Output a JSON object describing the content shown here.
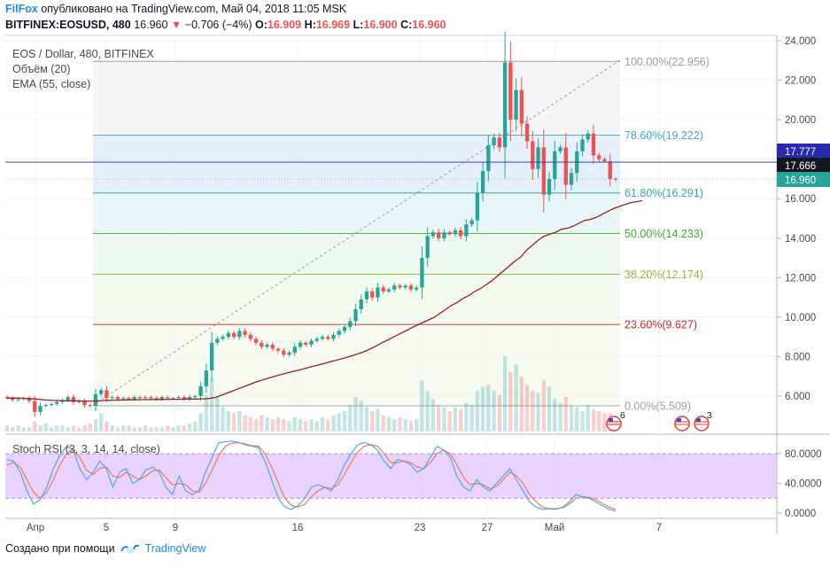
{
  "header": {
    "brand": "FilFox",
    "published": "опубликовано на TradingView.com, Май 04, 2018 11:05 MSK",
    "symbol": "BITFINEX:EOSUSD, 480",
    "last": "16.960",
    "change": "−0.706 (−4%)",
    "o_label": "O:",
    "o_val": "16.909",
    "h_label": "H:",
    "h_val": "16.969",
    "l_label": "L:",
    "l_val": "16.900",
    "c_label": "C:",
    "c_val": "16.960"
  },
  "legend": {
    "title": "EOS / Dollar, 480, BITFINEX",
    "volume": "Объём (20)",
    "ema": "EMA (55, close)",
    "stoch": "Stoch RSI (3, 3, 14, 14, close)"
  },
  "footer": {
    "created": "Создано при помощи",
    "tv": "TradingView"
  },
  "colors": {
    "up": "#26a69a",
    "down": "#ef5350",
    "ema": "#9c1f1f",
    "k_line": "#4aa8f0",
    "d_line": "#f07b4a",
    "stoch_band": "#e1bfff"
  },
  "events": [
    {
      "badge": "6"
    },
    {
      "badge": ""
    },
    {
      "badge": "3"
    }
  ],
  "chart_data": [
    {
      "type": "candlestick",
      "title": "EOS / Dollar, 480, BITFINEX",
      "ylim": [
        4.5,
        24.0
      ],
      "y_ticks": [
        "24.000",
        "22.000",
        "20.000",
        "18.000",
        "16.000",
        "14.000",
        "12.000",
        "10.000",
        "8.000",
        "6.000"
      ],
      "x_ticks": [
        "Апр",
        "5",
        "9",
        "16",
        "23",
        "27",
        "Май",
        "7"
      ],
      "price_labels": {
        "line": "17.777",
        "prev": "17.666",
        "last": "16.960"
      },
      "fibonacci": [
        {
          "level": "100.00%",
          "value": "22.956"
        },
        {
          "level": "78.60%",
          "value": "19.222"
        },
        {
          "level": "61.80%",
          "value": "16.291"
        },
        {
          "level": "50.00%",
          "value": "14.233"
        },
        {
          "level": "38.20%",
          "value": "12.174"
        },
        {
          "level": "23.60%",
          "value": "9.627"
        },
        {
          "level": "0.00%",
          "value": "5.509"
        }
      ],
      "close": [
        5.9,
        5.8,
        5.85,
        5.9,
        5.75,
        5.2,
        5.5,
        5.55,
        5.6,
        5.7,
        5.8,
        5.95,
        5.7,
        5.75,
        5.55,
        5.5,
        6.1,
        6.3,
        5.9,
        5.95,
        5.85,
        5.9,
        5.85,
        5.95,
        5.9,
        5.95,
        5.9,
        5.85,
        5.95,
        5.9,
        5.9,
        5.95,
        5.85,
        5.95,
        6.0,
        6.5,
        7.3,
        8.7,
        8.9,
        9.0,
        9.2,
        9.0,
        9.3,
        9.1,
        8.9,
        8.7,
        8.5,
        8.6,
        8.4,
        8.3,
        8.1,
        8.2,
        8.5,
        8.7,
        8.6,
        8.8,
        8.9,
        9.0,
        8.9,
        9.1,
        9.3,
        9.5,
        9.8,
        10.4,
        10.9,
        11.3,
        11.0,
        11.5,
        11.3,
        11.4,
        11.6,
        11.5,
        11.6,
        11.4,
        11.5,
        13.0,
        14.1,
        14.3,
        14.0,
        14.3,
        14.2,
        14.4,
        14.1,
        14.7,
        14.9,
        16.3,
        17.4,
        18.7,
        19.1,
        18.6,
        22.9,
        20.0,
        21.5,
        19.8,
        18.9,
        17.5,
        18.6,
        16.2,
        17.0,
        18.4,
        18.6,
        16.7,
        17.3,
        18.4,
        19.0,
        19.3,
        18.2,
        18.0,
        17.9,
        17.0,
        16.96
      ],
      "volume": [
        0.3,
        0.2,
        0.3,
        0.2,
        0.2,
        0.5,
        0.3,
        0.4,
        0.2,
        0.3,
        0.3,
        0.2,
        0.3,
        0.2,
        0.3,
        0.4,
        0.6,
        0.9,
        0.5,
        0.3,
        0.2,
        0.3,
        0.3,
        0.2,
        0.2,
        0.3,
        0.2,
        0.2,
        0.2,
        0.3,
        0.2,
        0.3,
        0.3,
        0.4,
        0.5,
        0.9,
        1.8,
        2.6,
        1.7,
        1.2,
        1.0,
        0.9,
        1.0,
        0.8,
        0.7,
        0.6,
        0.8,
        0.7,
        0.6,
        0.7,
        0.6,
        0.5,
        0.7,
        0.6,
        0.5,
        0.6,
        0.5,
        0.7,
        0.6,
        0.8,
        0.9,
        1.0,
        1.3,
        1.7,
        1.5,
        1.2,
        1.0,
        1.1,
        0.8,
        0.7,
        0.6,
        0.7,
        0.6,
        0.5,
        0.6,
        2.5,
        2.0,
        1.6,
        1.3,
        1.2,
        1.0,
        1.2,
        1.1,
        1.4,
        1.3,
        2.0,
        2.2,
        2.3,
        2.0,
        1.8,
        3.7,
        2.9,
        3.3,
        2.7,
        2.3,
        2.0,
        1.9,
        2.5,
        2.2,
        1.6,
        1.4,
        1.7,
        1.3,
        1.2,
        1.0,
        1.3,
        1.1,
        1.0,
        0.9,
        0.9,
        0.7
      ],
      "ema": [
        5.9,
        5.9,
        5.9,
        5.88,
        5.87,
        5.85,
        5.82,
        5.8,
        5.78,
        5.77,
        5.76,
        5.76,
        5.76,
        5.75,
        5.75,
        5.75,
        5.76,
        5.78,
        5.79,
        5.8,
        5.8,
        5.81,
        5.81,
        5.82,
        5.82,
        5.83,
        5.83,
        5.83,
        5.84,
        5.84,
        5.84,
        5.85,
        5.85,
        5.85,
        5.86,
        5.88,
        5.93,
        6.03,
        6.14,
        6.25,
        6.37,
        6.47,
        6.59,
        6.7,
        6.8,
        6.89,
        6.97,
        7.06,
        7.13,
        7.21,
        7.28,
        7.35,
        7.43,
        7.51,
        7.58,
        7.66,
        7.74,
        7.82,
        7.89,
        7.98,
        8.07,
        8.16,
        8.27,
        8.4,
        8.55,
        8.71,
        8.85,
        9.01,
        9.15,
        9.3,
        9.45,
        9.59,
        9.73,
        9.86,
        9.99,
        10.2,
        10.4,
        10.6,
        10.75,
        10.95,
        11.1,
        11.3,
        11.45,
        11.65,
        11.85,
        12.1,
        12.35,
        12.6,
        12.85,
        13.05,
        13.4,
        13.65,
        13.9,
        14.1,
        14.2,
        14.3,
        14.45,
        14.5,
        14.6,
        14.75,
        14.9,
        14.95,
        15.05,
        15.2,
        15.35,
        15.5,
        15.6,
        15.7,
        15.8,
        15.85,
        15.9
      ]
    },
    {
      "type": "line",
      "title": "Stoch RSI (3, 3, 14, 14, close)",
      "ylim": [
        0,
        100
      ],
      "y_ticks": [
        "80.0000",
        "40.0000",
        "0.0000"
      ],
      "band": [
        20,
        80
      ],
      "series": [
        {
          "name": "K",
          "values": [
            72,
            70,
            55,
            30,
            12,
            18,
            35,
            60,
            78,
            90,
            85,
            60,
            45,
            55,
            70,
            60,
            35,
            55,
            60,
            40,
            45,
            58,
            62,
            55,
            35,
            25,
            50,
            30,
            25,
            30,
            55,
            75,
            95,
            96,
            97,
            95,
            92,
            90,
            88,
            70,
            45,
            20,
            8,
            5,
            10,
            20,
            35,
            38,
            35,
            30,
            45,
            65,
            80,
            92,
            95,
            92,
            85,
            70,
            60,
            72,
            70,
            65,
            55,
            60,
            75,
            90,
            85,
            75,
            50,
            35,
            30,
            45,
            35,
            30,
            40,
            50,
            60,
            45,
            30,
            15,
            8,
            5,
            6,
            5,
            8,
            15,
            25,
            22,
            20,
            15,
            10,
            5,
            3
          ]
        },
        {
          "name": "D",
          "values": [
            65,
            68,
            62,
            45,
            28,
            20,
            28,
            45,
            65,
            80,
            86,
            75,
            58,
            52,
            60,
            62,
            50,
            48,
            55,
            50,
            45,
            50,
            57,
            58,
            48,
            38,
            40,
            38,
            30,
            28,
            40,
            58,
            78,
            90,
            94,
            95,
            93,
            91,
            90,
            80,
            62,
            40,
            20,
            10,
            8,
            12,
            22,
            30,
            35,
            33,
            38,
            52,
            68,
            82,
            90,
            92,
            90,
            80,
            68,
            68,
            70,
            68,
            62,
            60,
            68,
            80,
            85,
            80,
            65,
            48,
            38,
            40,
            38,
            33,
            36,
            45,
            55,
            50,
            40,
            25,
            15,
            8,
            6,
            6,
            7,
            12,
            20,
            22,
            21,
            18,
            13,
            8,
            5
          ]
        }
      ]
    }
  ]
}
